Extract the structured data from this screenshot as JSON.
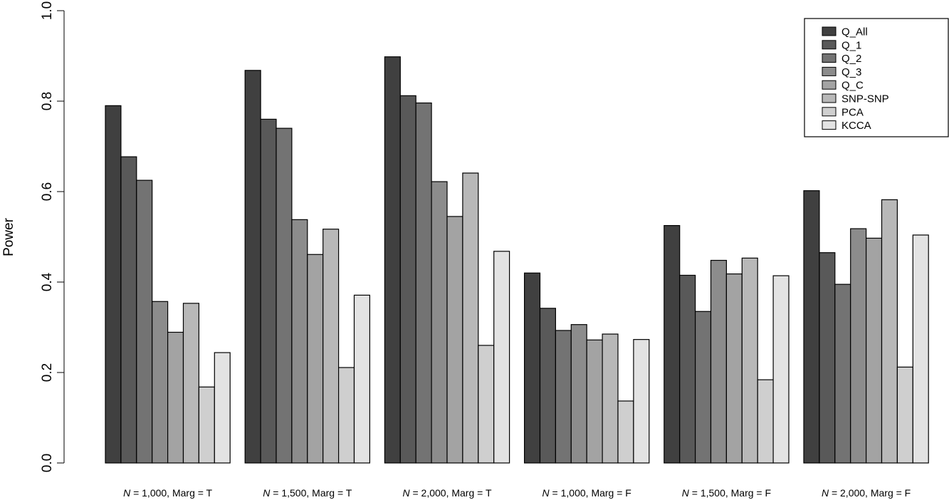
{
  "chart_data": {
    "type": "bar",
    "title": "",
    "xlabel": "",
    "ylabel": "Power",
    "ylim": [
      0,
      1
    ],
    "yticks": [
      0.0,
      0.2,
      0.4,
      0.6,
      0.8,
      1.0
    ],
    "ytick_labels": [
      "0.0",
      "0.2",
      "0.4",
      "0.6",
      "0.8",
      "1.0"
    ],
    "grid": false,
    "legend_position": "top-right",
    "categories": [
      {
        "n_symbol": "N",
        "rest": " = 1,000, Marg = T"
      },
      {
        "n_symbol": "N",
        "rest": " = 1,500, Marg = T"
      },
      {
        "n_symbol": "N",
        "rest": " = 2,000, Marg = T"
      },
      {
        "n_symbol": "N",
        "rest": " = 1,000, Marg = F"
      },
      {
        "n_symbol": "N",
        "rest": " = 1,500, Marg = F"
      },
      {
        "n_symbol": "N",
        "rest": " = 2,000, Marg = F"
      }
    ],
    "series": [
      {
        "name": "Q_All",
        "color": "#404040",
        "values": [
          0.79,
          0.868,
          0.898,
          0.42,
          0.525,
          0.602
        ]
      },
      {
        "name": "Q_1",
        "color": "#595959",
        "values": [
          0.677,
          0.76,
          0.812,
          0.342,
          0.415,
          0.465
        ]
      },
      {
        "name": "Q_2",
        "color": "#737373",
        "values": [
          0.625,
          0.74,
          0.796,
          0.293,
          0.335,
          0.395
        ]
      },
      {
        "name": "Q_3",
        "color": "#8c8c8c",
        "values": [
          0.357,
          0.538,
          0.622,
          0.306,
          0.448,
          0.518
        ]
      },
      {
        "name": "Q_C",
        "color": "#a3a3a3",
        "values": [
          0.289,
          0.461,
          0.545,
          0.272,
          0.418,
          0.497
        ]
      },
      {
        "name": "SNP-SNP",
        "color": "#b8b8b8",
        "values": [
          0.353,
          0.517,
          0.641,
          0.285,
          0.453,
          0.582
        ]
      },
      {
        "name": "PCA",
        "color": "#cfcfcf",
        "values": [
          0.168,
          0.211,
          0.26,
          0.137,
          0.184,
          0.212
        ]
      },
      {
        "name": "KCCA",
        "color": "#e3e3e3",
        "values": [
          0.244,
          0.371,
          0.468,
          0.273,
          0.414,
          0.504
        ]
      }
    ]
  }
}
